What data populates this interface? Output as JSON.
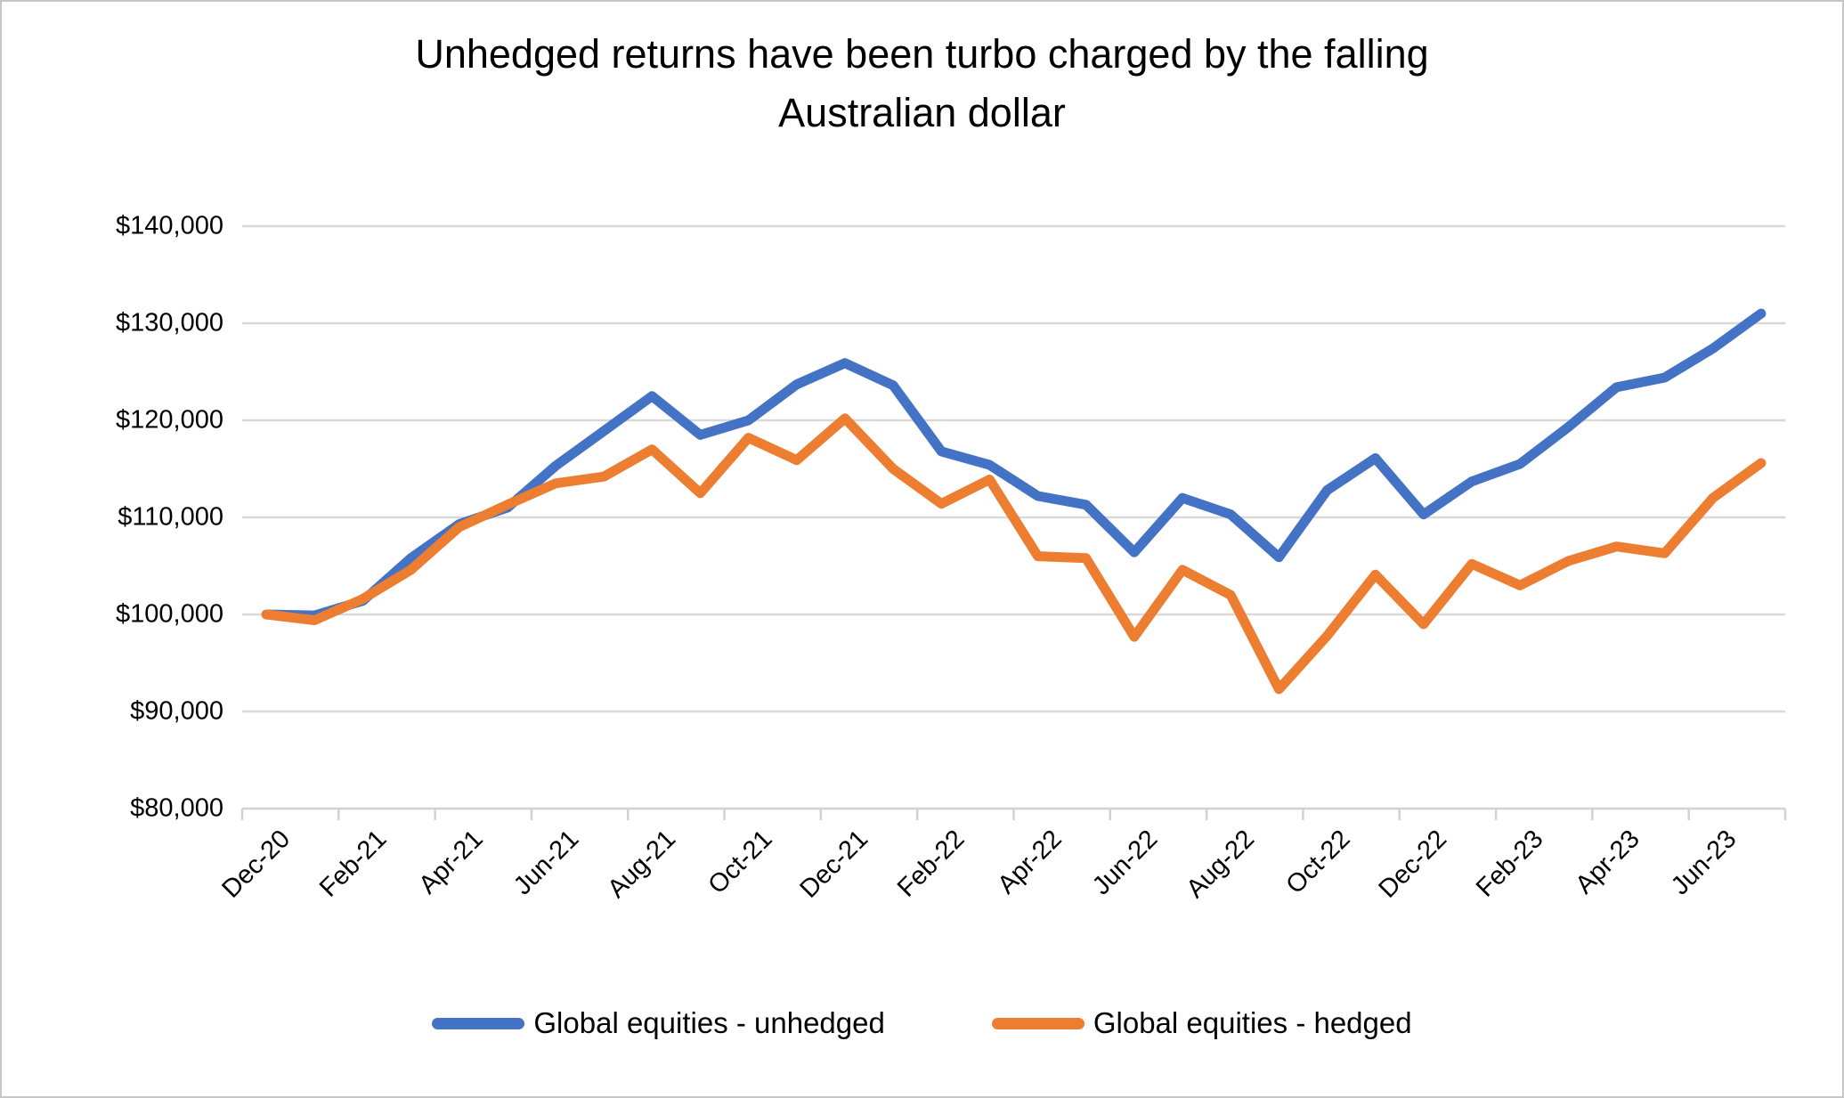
{
  "header": {
    "title_line1": "Unhedged returns have been turbo charged by the falling",
    "title_line2": "Australian dollar"
  },
  "chart_data": {
    "type": "line",
    "title": "Unhedged returns have been turbo charged by the falling Australian dollar",
    "xlabel": "",
    "ylabel": "",
    "ylim": [
      80000,
      140000
    ],
    "y_tick_step": 10000,
    "y_tick_labels_top_to_bottom": [
      "$140,000",
      "$130,000",
      "$120,000",
      "$110,000",
      "$100,000",
      "$90,000",
      "$80,000"
    ],
    "grid": "horizontal",
    "legend_position": "bottom",
    "x_label_every": 2,
    "x_tick_labels": [
      "Dec-20",
      "Feb-21",
      "Apr-21",
      "Jun-21",
      "Aug-21",
      "Oct-21",
      "Dec-21",
      "Feb-22",
      "Apr-22",
      "Jun-22",
      "Aug-22",
      "Oct-22",
      "Dec-22",
      "Feb-23",
      "Apr-23",
      "Jun-23"
    ],
    "x_categories": [
      "Dec-20",
      "Jan-21",
      "Feb-21",
      "Mar-21",
      "Apr-21",
      "May-21",
      "Jun-21",
      "Jul-21",
      "Aug-21",
      "Sep-21",
      "Oct-21",
      "Nov-21",
      "Dec-21",
      "Jan-22",
      "Feb-22",
      "Mar-22",
      "Apr-22",
      "May-22",
      "Jun-22",
      "Jul-22",
      "Aug-22",
      "Sep-22",
      "Oct-22",
      "Nov-22",
      "Dec-22",
      "Jan-23",
      "Feb-23",
      "Mar-23",
      "Apr-23",
      "May-23",
      "Jun-23",
      "Jul-23"
    ],
    "series": [
      {
        "name": "Global equities - unhedged",
        "color": "#4472C4",
        "values": [
          100000,
          99900,
          101400,
          105800,
          109300,
          111000,
          115300,
          118900,
          122500,
          118500,
          120000,
          123700,
          125900,
          123600,
          116800,
          115400,
          112200,
          111300,
          106400,
          112000,
          110300,
          105900,
          112800,
          116100,
          110300,
          113700,
          115500,
          119300,
          123400,
          124400,
          127400,
          131000
        ]
      },
      {
        "name": "Global equities - hedged",
        "color": "#ED7D31",
        "values": [
          100000,
          99400,
          101600,
          104600,
          109000,
          111300,
          113500,
          114200,
          117000,
          112500,
          118200,
          115900,
          120200,
          115000,
          111400,
          113900,
          106000,
          105800,
          97700,
          104600,
          102000,
          92300,
          97800,
          104100,
          99000,
          105200,
          103000,
          105500,
          107000,
          106300,
          112000,
          115600
        ]
      }
    ]
  },
  "colors": {
    "gridline": "#D9D9D9",
    "axis_line": "#D2D2D2",
    "text": "#000000",
    "background": "#FFFFFF",
    "frame_border": "#C6C6C6"
  }
}
